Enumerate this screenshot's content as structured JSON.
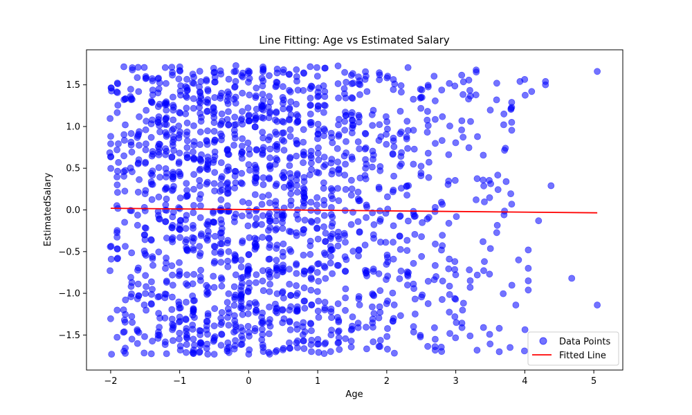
{
  "chart_data": {
    "type": "scatter",
    "title": "Line Fitting: Age vs Estimated Salary",
    "xlabel": "Age",
    "ylabel": "EstimatedSalary",
    "xlim": [
      -2.35,
      5.42
    ],
    "ylim": [
      -1.92,
      1.92
    ],
    "xticks": [
      -2,
      -1,
      0,
      1,
      2,
      3,
      4,
      5
    ],
    "yticks": [
      -1.5,
      -1.0,
      -0.5,
      0.0,
      0.5,
      1.0,
      1.5
    ],
    "xtick_labels": [
      "−2",
      "−1",
      "0",
      "1",
      "2",
      "3",
      "4",
      "5"
    ],
    "ytick_labels": [
      "−1.5",
      "−1.0",
      "−0.5",
      "0.0",
      "0.5",
      "1.0",
      "1.5"
    ],
    "grid": false,
    "legend_position": "bottom-right",
    "series": [
      {
        "name": "Data Points",
        "kind": "scatter",
        "color": "#0000ff",
        "alpha": 0.55,
        "x_values": [
          -2.0,
          -1.9,
          -1.8,
          -1.7,
          -1.6,
          -1.5,
          -1.4,
          -1.3,
          -1.2,
          -1.1,
          -1.0,
          -0.9,
          -0.8,
          -0.7,
          -0.6,
          -0.5,
          -0.4,
          -0.3,
          -0.2,
          -0.1,
          0.0,
          0.1,
          0.2,
          0.3,
          0.4,
          0.5,
          0.6,
          0.7,
          0.8,
          0.9,
          1.0,
          1.1,
          1.2,
          1.3,
          1.4,
          1.5,
          1.6,
          1.7,
          1.8,
          1.9,
          2.0,
          2.1,
          2.2,
          2.3,
          2.4,
          2.5,
          2.6,
          2.7,
          2.8,
          2.9,
          3.0,
          3.1,
          3.2,
          3.3,
          3.4,
          3.5,
          3.6,
          3.7,
          3.8,
          4.0
        ],
        "points_per_x": [
          16,
          24,
          24,
          24,
          26,
          30,
          32,
          36,
          44,
          44,
          44,
          44,
          44,
          44,
          44,
          44,
          44,
          44,
          44,
          44,
          44,
          44,
          44,
          44,
          44,
          44,
          40,
          40,
          40,
          38,
          38,
          34,
          32,
          30,
          28,
          28,
          26,
          24,
          22,
          22,
          22,
          20,
          18,
          18,
          16,
          16,
          14,
          14,
          12,
          12,
          12,
          10,
          10,
          8,
          8,
          8,
          6,
          6,
          6,
          4
        ],
        "y_range": [
          -1.73,
          1.73
        ],
        "sparse_points": [
          {
            "x": 4.05,
            "y": -0.48
          },
          {
            "x": 4.05,
            "y": -0.7
          },
          {
            "x": 4.05,
            "y": -0.85
          },
          {
            "x": 4.05,
            "y": -0.96
          },
          {
            "x": 3.91,
            "y": -0.6
          },
          {
            "x": 3.87,
            "y": -1.14
          },
          {
            "x": 3.93,
            "y": 1.54
          },
          {
            "x": 4.1,
            "y": 1.42
          },
          {
            "x": 4.3,
            "y": 1.54
          },
          {
            "x": 4.3,
            "y": 1.5
          },
          {
            "x": 4.38,
            "y": 0.29
          },
          {
            "x": 4.2,
            "y": -0.13
          },
          {
            "x": 4.68,
            "y": -0.82
          },
          {
            "x": 5.05,
            "y": 1.66
          },
          {
            "x": 5.05,
            "y": -1.14
          },
          {
            "x": 3.81,
            "y": 0.07
          },
          {
            "x": 3.81,
            "y": 1.05
          },
          {
            "x": 3.81,
            "y": 1.23
          },
          {
            "x": 3.81,
            "y": 1.29
          },
          {
            "x": 3.73,
            "y": 0.34
          },
          {
            "x": 3.72,
            "y": 0.74
          },
          {
            "x": 3.63,
            "y": -1.42
          },
          {
            "x": 3.63,
            "y": -1.7
          }
        ]
      },
      {
        "name": "Fitted Line",
        "kind": "line",
        "color": "#ff0000",
        "x": [
          -2.0,
          5.05
        ],
        "y": [
          0.02,
          -0.035
        ]
      }
    ]
  }
}
